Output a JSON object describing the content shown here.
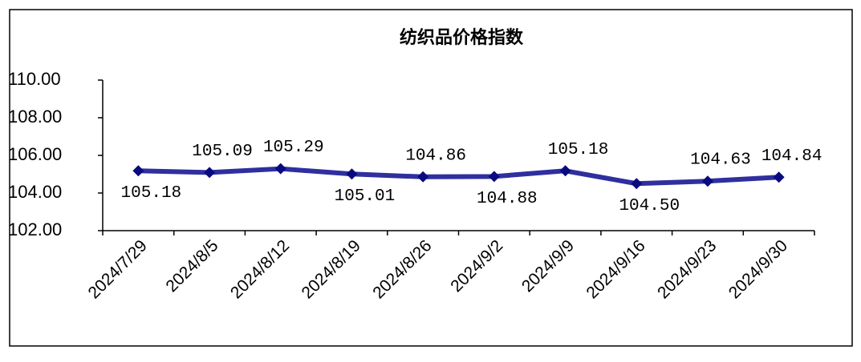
{
  "chart_data": {
    "type": "line",
    "title": "纺织品价格指数",
    "categories": [
      "2024/7/29",
      "2024/8/5",
      "2024/8/12",
      "2024/8/19",
      "2024/8/26",
      "2024/9/2",
      "2024/9/9",
      "2024/9/16",
      "2024/9/23",
      "2024/9/30"
    ],
    "values": [
      105.18,
      105.09,
      105.29,
      105.01,
      104.86,
      104.88,
      105.18,
      104.5,
      104.63,
      104.84
    ],
    "value_labels": [
      "105.18",
      "105.09",
      "105.29",
      "105.01",
      "104.86",
      "104.88",
      "105.18",
      "104.50",
      "104.63",
      "104.84"
    ],
    "color": "#2f2f9f",
    "marker_color": "#0a0a80",
    "ylim": [
      102,
      110
    ],
    "yticks": [
      {
        "value": 102,
        "label": "102.00"
      },
      {
        "value": 104,
        "label": "104.00"
      },
      {
        "value": 106,
        "label": "106.00"
      },
      {
        "value": 108,
        "label": "108.00"
      },
      {
        "value": 110,
        "label": "110.00"
      }
    ],
    "grid": false
  }
}
